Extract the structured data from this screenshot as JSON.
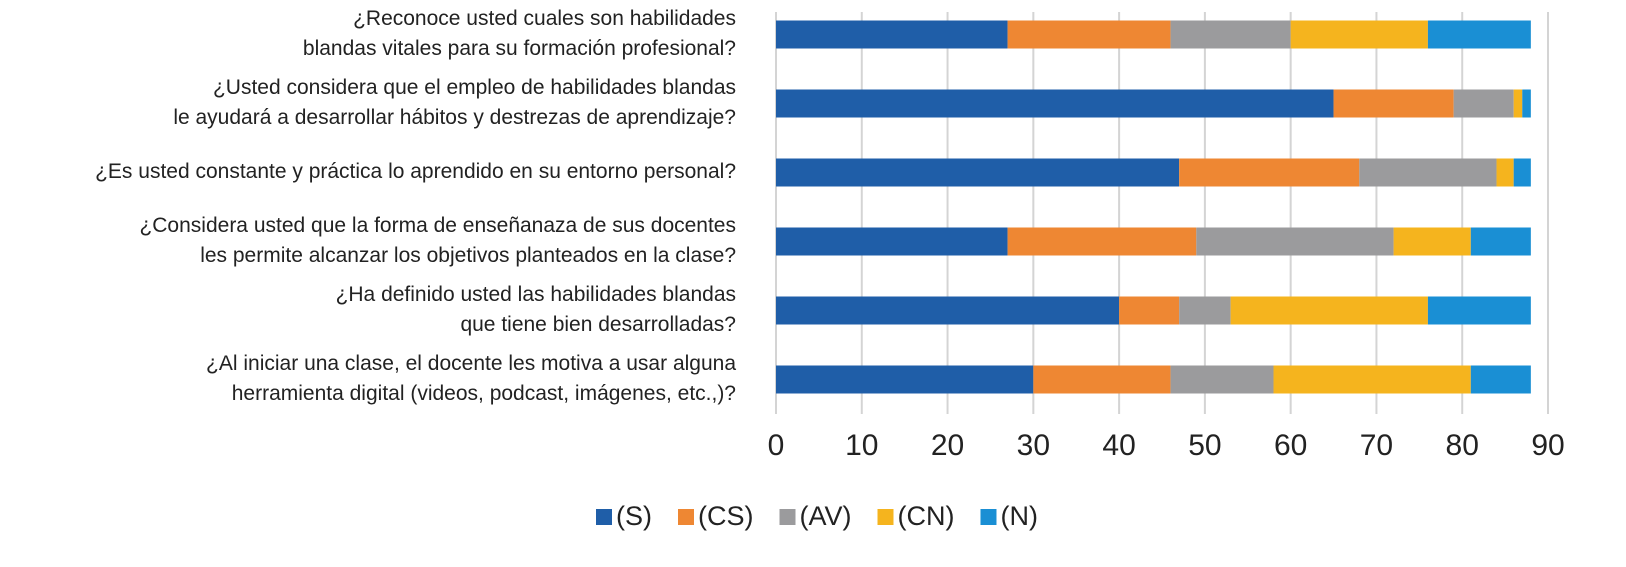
{
  "chart_data": {
    "type": "stacked-bar-horizontal",
    "categories": [
      [
        "¿Reconoce usted cuales son habilidades",
        "blandas vitales para su formación profesional?"
      ],
      [
        "¿Usted considera que el empleo de habilidades blandas",
        "le ayudará a desarrollar hábitos y destrezas de aprendizaje?"
      ],
      [
        "¿Es usted constante y práctica lo aprendido en su entorno personal?"
      ],
      [
        "¿Considera usted que la forma de enseñanaza de sus docentes",
        "les permite alcanzar los objetivos planteados en la clase?"
      ],
      [
        "¿Ha definido usted las habilidades blandas",
        "que tiene bien desarrolladas?"
      ],
      [
        "¿Al iniciar una clase, el docente les motiva a usar alguna",
        "herramienta digital (videos, podcast, imágenes, etc.,)?"
      ]
    ],
    "series": [
      {
        "name": "(S)",
        "color": "#1f5ea8",
        "values": [
          27,
          65,
          47,
          27,
          40,
          30
        ]
      },
      {
        "name": "(CS)",
        "color": "#ee8733",
        "values": [
          19,
          14,
          21,
          22,
          7,
          16
        ]
      },
      {
        "name": "(AV)",
        "color": "#9b9b9d",
        "values": [
          14,
          7,
          16,
          23,
          6,
          12
        ]
      },
      {
        "name": "(CN)",
        "color": "#f5b41e",
        "values": [
          16,
          1,
          2,
          9,
          23,
          23
        ]
      },
      {
        "name": "(N)",
        "color": "#1a8fd4",
        "values": [
          12,
          1,
          2,
          7,
          12,
          7
        ]
      }
    ],
    "xlim": [
      0,
      90
    ],
    "xticks": [
      0,
      10,
      20,
      30,
      40,
      50,
      60,
      70,
      80,
      90
    ],
    "grid": true,
    "legend": "bottom"
  }
}
